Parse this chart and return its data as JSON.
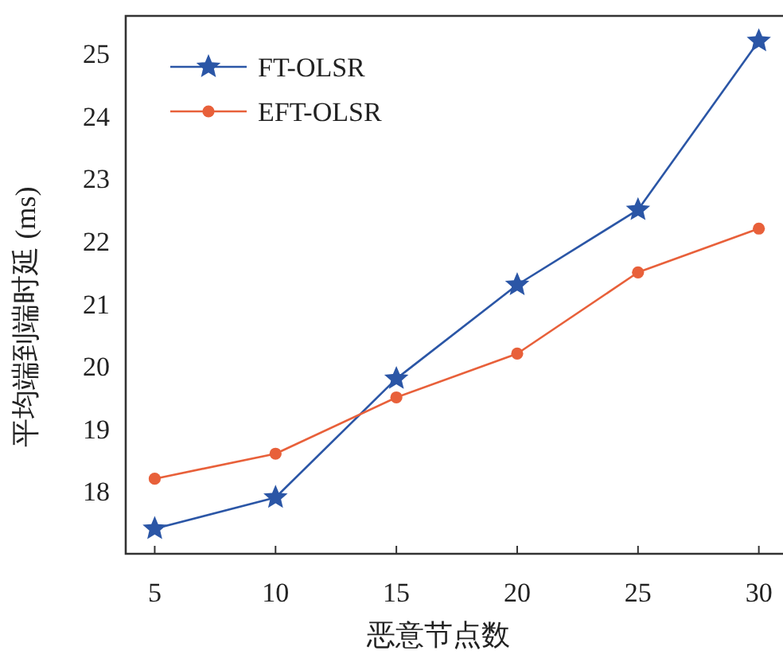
{
  "chart_data": {
    "type": "line",
    "xlabel": "恶意节点数",
    "ylabel": "平均端到端时延 (ms)",
    "x": [
      5,
      10,
      15,
      20,
      25,
      30
    ],
    "series": [
      {
        "name": "FT-OLSR",
        "color": "#2b56a6",
        "marker": "star",
        "values": [
          17.4,
          17.9,
          19.8,
          21.3,
          22.5,
          25.2
        ]
      },
      {
        "name": "EFT-OLSR",
        "color": "#e8603a",
        "marker": "circle",
        "values": [
          18.2,
          18.6,
          19.5,
          20.2,
          21.5,
          22.2
        ]
      }
    ],
    "xlim": [
      3.8,
      31
    ],
    "ylim": [
      17,
      25.6
    ],
    "xticks": [
      5,
      10,
      15,
      20,
      25,
      30
    ],
    "yticks": [
      18,
      19,
      20,
      21,
      22,
      23,
      24,
      25
    ],
    "legend": "top left",
    "grid": false
  }
}
